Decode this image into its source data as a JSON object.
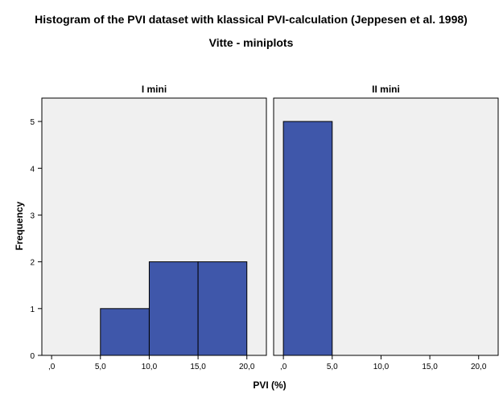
{
  "chart_data": {
    "type": "bar",
    "title": "Histogram of the PVI dataset with klassical PVI-calculation (Jeppesen et al. 1998)",
    "subtitle": "Vitte - miniplots",
    "xlabel": "PVI (%)",
    "ylabel": "Frequency",
    "xlim": [
      -1,
      22
    ],
    "ylim": [
      0,
      5.5
    ],
    "x_ticks": [
      {
        "value": 0,
        "label": ",0"
      },
      {
        "value": 5,
        "label": "5,0"
      },
      {
        "value": 10,
        "label": "10,0"
      },
      {
        "value": 15,
        "label": "15,0"
      },
      {
        "value": 20,
        "label": "20,0"
      }
    ],
    "y_ticks": [
      {
        "value": 0,
        "label": "0"
      },
      {
        "value": 1,
        "label": "1"
      },
      {
        "value": 2,
        "label": "2"
      },
      {
        "value": 3,
        "label": "3"
      },
      {
        "value": 4,
        "label": "4"
      },
      {
        "value": 5,
        "label": "5"
      }
    ],
    "bar_color": "#3f57aa",
    "panel_background": "#f0f0f0",
    "panels": [
      {
        "name": "I mini",
        "bins": [
          {
            "start": 5,
            "end": 10,
            "count": 1
          },
          {
            "start": 10,
            "end": 15,
            "count": 2
          },
          {
            "start": 15,
            "end": 20,
            "count": 2
          }
        ]
      },
      {
        "name": "II mini",
        "bins": [
          {
            "start": 0,
            "end": 5,
            "count": 5
          }
        ]
      }
    ]
  }
}
